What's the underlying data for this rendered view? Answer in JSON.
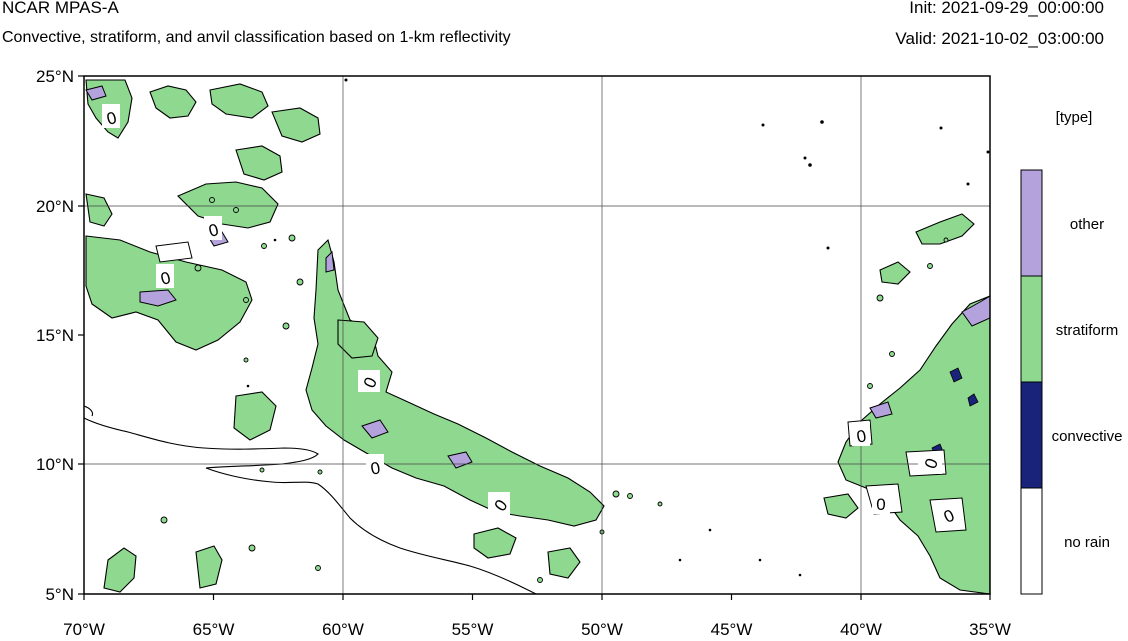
{
  "header": {
    "model": "NCAR MPAS-A",
    "description": "Convective, stratiform, and anvil classification based on 1-km reflectivity",
    "init": "Init: 2021-09-29_00:00:00",
    "valid": "Valid: 2021-10-02_03:00:00"
  },
  "map": {
    "lon_range": [
      -70,
      -35
    ],
    "lat_range": [
      5,
      25
    ],
    "grid": true,
    "x_ticks": [
      "70°W",
      "65°W",
      "60°W",
      "55°W",
      "50°W",
      "45°W",
      "40°W",
      "35°W"
    ],
    "y_ticks": [
      "25°N",
      "20°N",
      "15°N",
      "10°N",
      "5°N"
    ],
    "contour_labels": [
      "0",
      "0",
      "0",
      "0",
      "0",
      "0",
      "0",
      "0",
      "0",
      "0"
    ]
  },
  "legend": {
    "title": "[type]",
    "items": [
      {
        "label": "other",
        "color": "#b3a2dc"
      },
      {
        "label": "stratiform",
        "color": "#8ed98f"
      },
      {
        "label": "convective",
        "color": "#1a237a"
      },
      {
        "label": "no rain",
        "color": "#ffffff"
      }
    ]
  },
  "colors": {
    "coastline": "#000000",
    "grid": "#000000"
  }
}
